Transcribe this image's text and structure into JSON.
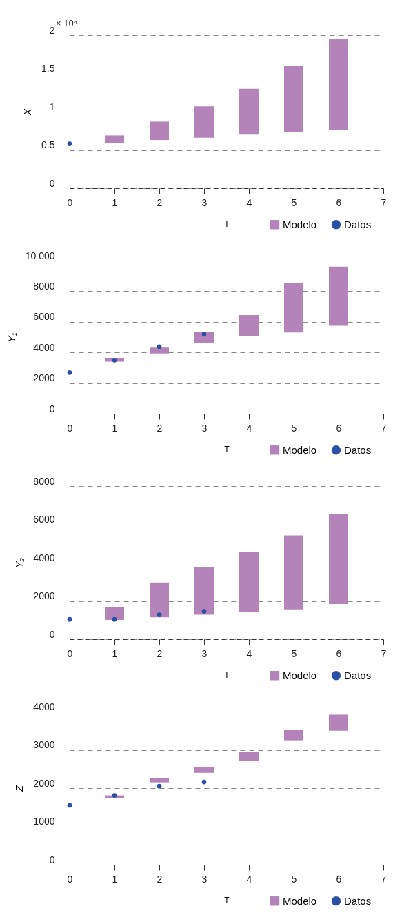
{
  "chart_data": [
    {
      "type": "bar",
      "ylabel": "X",
      "xlabel": "T",
      "annotations": [
        "× 10⁴"
      ],
      "xlim": [
        0,
        7
      ],
      "xticks": [
        0,
        1,
        2,
        3,
        4,
        5,
        6,
        7
      ],
      "ylim": [
        0,
        2
      ],
      "yticks": [
        0,
        0.5,
        1,
        1.5,
        2
      ],
      "grid": "y",
      "legend": "bottom right",
      "series": [
        {
          "name": "Modelo",
          "type": "bar",
          "color": "#b383ba",
          "x": [
            1,
            2,
            3,
            4,
            5,
            6
          ],
          "base": [
            0.59,
            0.63,
            0.66,
            0.7,
            0.73,
            0.76
          ],
          "values": [
            0.1,
            0.24,
            0.41,
            0.6,
            0.87,
            1.19
          ]
        },
        {
          "name": "Datos",
          "type": "scatter",
          "color": "#2a4fa5",
          "marker": "circle",
          "x": [
            0
          ],
          "values": [
            0.58
          ]
        }
      ]
    },
    {
      "type": "bar",
      "ylabel": "Y₁",
      "xlabel": "T",
      "xlim": [
        0,
        7
      ],
      "xticks": [
        0,
        1,
        2,
        3,
        4,
        5,
        6,
        7
      ],
      "ylim": [
        0,
        10000
      ],
      "yticks": [
        0,
        2000,
        4000,
        6000,
        8000,
        {
          "value": 10000,
          "label": "10 000"
        }
      ],
      "grid": "y",
      "legend": "bottom right",
      "series": [
        {
          "name": "Modelo",
          "type": "bar",
          "color": "#b383ba",
          "x": [
            1,
            2,
            3,
            4,
            5,
            6
          ],
          "base": [
            3400,
            3930,
            4600,
            5090,
            5300,
            5740
          ],
          "values": [
            250,
            430,
            740,
            1350,
            3210,
            3870
          ]
        },
        {
          "name": "Datos",
          "type": "scatter",
          "color": "#2a4fa5",
          "marker": "circle",
          "x": [
            0,
            1,
            2,
            3
          ],
          "values": [
            2690,
            3500,
            4380,
            5190
          ]
        }
      ]
    },
    {
      "type": "bar",
      "ylabel": "Y₂",
      "xlabel": "T",
      "xlim": [
        0,
        7
      ],
      "xticks": [
        0,
        1,
        2,
        3,
        4,
        5,
        6,
        7
      ],
      "ylim": [
        0,
        8000
      ],
      "yticks": [
        0,
        2000,
        4000,
        6000,
        8000
      ],
      "grid": "y",
      "legend": "bottom right",
      "series": [
        {
          "name": "Modelo",
          "type": "bar",
          "color": "#b383ba",
          "x": [
            1,
            2,
            3,
            4,
            5,
            6
          ],
          "base": [
            1010,
            1140,
            1280,
            1440,
            1560,
            1840
          ],
          "values": [
            670,
            1820,
            2470,
            3140,
            3860,
            4690
          ]
        },
        {
          "name": "Datos",
          "type": "scatter",
          "color": "#2a4fa5",
          "marker": "circle",
          "x": [
            0,
            1,
            2,
            3
          ],
          "values": [
            1040,
            1040,
            1280,
            1460
          ]
        }
      ]
    },
    {
      "type": "bar",
      "ylabel": "Z",
      "xlabel": "T",
      "xlim": [
        0,
        7
      ],
      "xticks": [
        0,
        1,
        2,
        3,
        4,
        5,
        6,
        7
      ],
      "ylim": [
        0,
        4000
      ],
      "yticks": [
        0,
        1000,
        2000,
        3000,
        4000
      ],
      "grid": "y",
      "legend": "bottom right",
      "series": [
        {
          "name": "Modelo",
          "type": "bar",
          "color": "#b383ba",
          "x": [
            1,
            2,
            3,
            4,
            5,
            6
          ],
          "base": [
            1740,
            2150,
            2400,
            2720,
            3250,
            3500
          ],
          "values": [
            70,
            110,
            160,
            230,
            280,
            420
          ]
        },
        {
          "name": "Datos",
          "type": "scatter",
          "color": "#2a4fa5",
          "marker": "circle",
          "x": [
            0,
            1,
            2,
            3
          ],
          "values": [
            1550,
            1810,
            2050,
            2160
          ]
        }
      ]
    }
  ]
}
